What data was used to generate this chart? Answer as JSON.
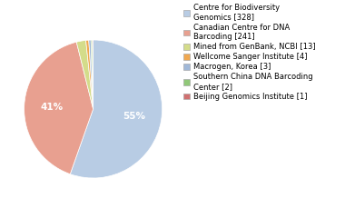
{
  "legend_labels": [
    "Centre for Biodiversity\nGenomics [328]",
    "Canadian Centre for DNA\nBarcoding [241]",
    "Mined from GenBank, NCBI [13]",
    "Wellcome Sanger Institute [4]",
    "Macrogen, Korea [3]",
    "Southern China DNA Barcoding\nCenter [2]",
    "Beijing Genomics Institute [1]"
  ],
  "values": [
    328,
    241,
    13,
    4,
    3,
    2,
    1
  ],
  "colors": [
    "#b8cce4",
    "#e8a090",
    "#d4dc8a",
    "#f0a850",
    "#a0b8d8",
    "#90c878",
    "#d07070"
  ],
  "figsize": [
    3.8,
    2.4
  ],
  "dpi": 100,
  "legend_fontsize": 6.0,
  "pct_fontsize": 7.5,
  "pct_color": "white",
  "startangle": 90,
  "pct_threshold": 0.03
}
